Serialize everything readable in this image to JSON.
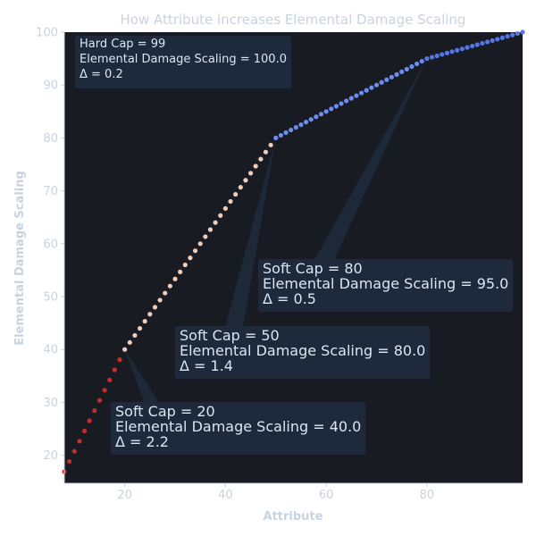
{
  "chart_data": {
    "type": "scatter",
    "title": "How Attribute increases Elemental Damage Scaling",
    "xlabel": "Attribute",
    "ylabel": "Elemental Damage Scaling",
    "xlim": [
      8,
      99
    ],
    "ylim": [
      14.7,
      100
    ],
    "x_ticks": [
      20,
      40,
      60,
      80
    ],
    "y_ticks": [
      20,
      30,
      40,
      50,
      60,
      70,
      80,
      90,
      100
    ],
    "grid": false,
    "curve": {
      "x_start": 8,
      "x_end": 99,
      "segments": [
        {
          "from_x": 8,
          "to_x": 20,
          "from_y": 16.9,
          "to_y": 40,
          "color": "#c62d2d"
        },
        {
          "from_x": 20,
          "to_x": 50,
          "from_y": 40,
          "to_y": 80,
          "color": "#f0cdb8"
        },
        {
          "from_x": 50,
          "to_x": 80,
          "from_y": 80,
          "to_y": 95,
          "color": "#6f8df0"
        },
        {
          "from_x": 80,
          "to_x": 99,
          "from_y": 95,
          "to_y": 100,
          "color": "#5577e6"
        }
      ]
    },
    "annotations": [
      {
        "id": "hard-cap",
        "x": 99,
        "y": 100,
        "lines": [
          "Hard Cap = 99",
          "Elemental Damage Scaling = 100.0",
          "Δ = 0.2"
        ]
      },
      {
        "id": "soft-cap-80",
        "x": 80,
        "y": 95,
        "lines": [
          "Soft Cap = 80",
          "Elemental Damage Scaling = 95.0",
          "Δ = 0.5"
        ]
      },
      {
        "id": "soft-cap-50",
        "x": 50,
        "y": 80,
        "lines": [
          "Soft Cap = 50",
          "Elemental Damage Scaling = 80.0",
          "Δ = 1.4"
        ]
      },
      {
        "id": "soft-cap-20",
        "x": 20,
        "y": 40,
        "lines": [
          "Soft Cap = 20",
          "Elemental Damage Scaling = 40.0",
          "Δ = 2.2"
        ]
      }
    ],
    "colors": {
      "plot_background": "#181b22",
      "text": "#c8d3e0",
      "axis": "#c8d3e0",
      "annotation_box": "#1e2a3b",
      "annotation_text": "#dce5f0"
    }
  }
}
